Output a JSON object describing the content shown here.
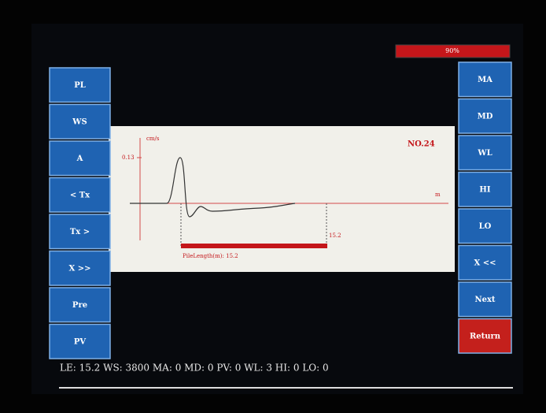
{
  "battery": "90%",
  "left_buttons": [
    "PL",
    "WS",
    "A",
    "< Tx",
    "Tx >",
    "X >>",
    "Pre",
    "PV"
  ],
  "right_buttons": [
    "MA",
    "MD",
    "WL",
    "HI",
    "LO",
    "X <<",
    "Next",
    "Return"
  ],
  "plot": {
    "y_unit": "cm/s",
    "y_label": "0.13",
    "x_unit": "m",
    "record": "NO.24",
    "marker": "15.2",
    "pile_length": "PileLength(m): 15.2"
  },
  "status": "LE: 15.2 WS: 3800 MA: 0 MD: 0 PV: 0 WL: 3 HI: 0 LO: 0"
}
